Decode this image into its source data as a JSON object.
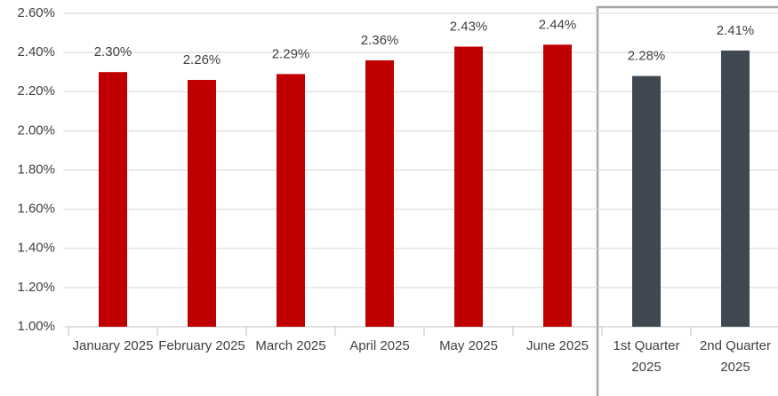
{
  "chart_data": {
    "type": "bar",
    "categories": [
      "January 2025",
      "February 2025",
      "March 2025",
      "April 2025",
      "May 2025",
      "June 2025",
      "1st Quarter 2025",
      "2nd Quarter 2025"
    ],
    "values": [
      2.3,
      2.26,
      2.29,
      2.36,
      2.43,
      2.44,
      2.28,
      2.41
    ],
    "value_labels": [
      "2.30%",
      "2.26%",
      "2.29%",
      "2.36%",
      "2.43%",
      "2.44%",
      "2.28%",
      "2.41%"
    ],
    "colors": [
      "#c00000",
      "#c00000",
      "#c00000",
      "#c00000",
      "#c00000",
      "#c00000",
      "#404852",
      "#404852"
    ],
    "ylim": [
      1.0,
      2.6
    ],
    "yticks": [
      {
        "value": 1.0,
        "label": "1.00%"
      },
      {
        "value": 1.2,
        "label": "1.20%"
      },
      {
        "value": 1.4,
        "label": "1.40%"
      },
      {
        "value": 1.6,
        "label": "1.60%"
      },
      {
        "value": 1.8,
        "label": "1.80%"
      },
      {
        "value": 2.0,
        "label": "2.00%"
      },
      {
        "value": 2.2,
        "label": "2.20%"
      },
      {
        "value": 2.4,
        "label": "2.40%"
      },
      {
        "value": 2.6,
        "label": "2.60%"
      }
    ],
    "grid": true
  }
}
